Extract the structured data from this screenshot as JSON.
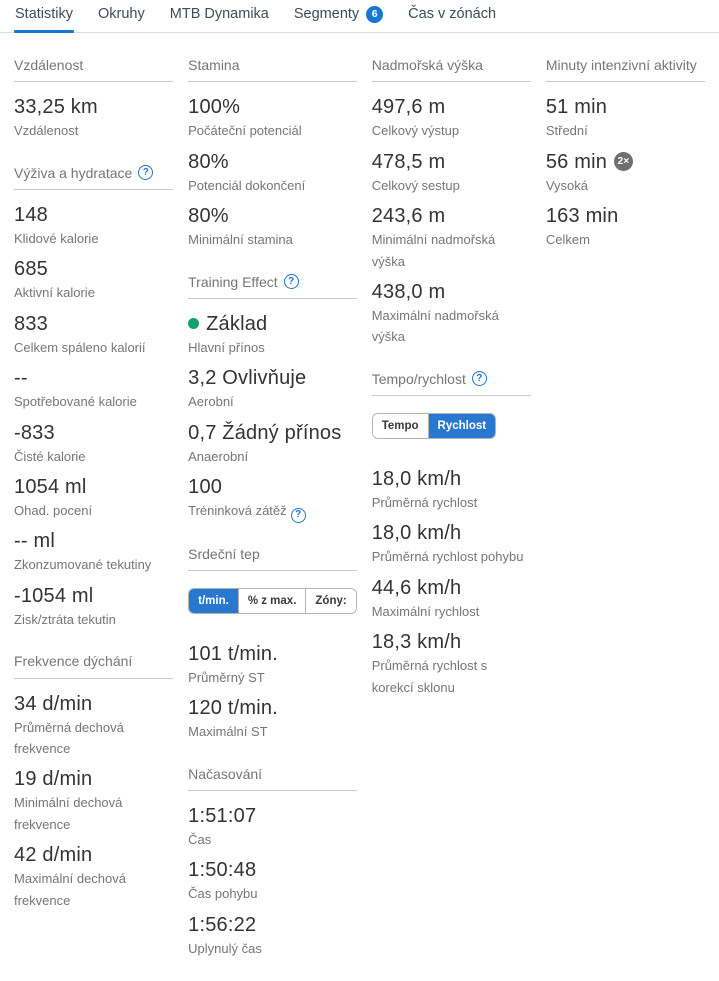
{
  "colors": {
    "accent": "#1976d2",
    "benefit_dot": "#149e72",
    "multiplier_badge": "#6d6f72"
  },
  "icons": {
    "help": "?"
  },
  "tabs": [
    {
      "label": "Statistiky",
      "active": true
    },
    {
      "label": "Okruhy"
    },
    {
      "label": "MTB Dynamika"
    },
    {
      "label": "Segmenty",
      "badge": "6"
    },
    {
      "label": "Čas v zónách"
    }
  ],
  "columns": [
    {
      "sections": [
        {
          "title": "Vzdálenost",
          "metrics": [
            {
              "value": "33,25 km",
              "label": "Vzdálenost"
            }
          ]
        },
        {
          "title": "Výživa a hydratace",
          "help": true,
          "metrics": [
            {
              "value": "148",
              "label": "Klidové kalorie"
            },
            {
              "value": "685",
              "label": "Aktivní kalorie"
            },
            {
              "value": "833",
              "label": "Celkem spáleno kalorií"
            },
            {
              "value": "--",
              "label": "Spotřebované kalorie"
            },
            {
              "value": "-833",
              "label": "Čisté kalorie"
            },
            {
              "value": "1054 ml",
              "label": "Ohad. pocení"
            },
            {
              "value": "-- ml",
              "label": "Zkonzumované tekutiny"
            },
            {
              "value": "-1054 ml",
              "label": "Zisk/ztráta tekutin"
            }
          ]
        },
        {
          "title": "Frekvence dýchání",
          "metrics": [
            {
              "value": "34 d/min",
              "label": "Průměrná dechová frekvence"
            },
            {
              "value": "19 d/min",
              "label": "Minimální dechová frekvence"
            },
            {
              "value": "42 d/min",
              "label": "Maximální dechová frekvence"
            }
          ]
        }
      ]
    },
    {
      "sections": [
        {
          "title": "Stamina",
          "metrics": [
            {
              "value": "100%",
              "label": "Počáteční potenciál"
            },
            {
              "value": "80%",
              "label": "Potenciál dokončení"
            },
            {
              "value": "80%",
              "label": "Minimální stamina"
            }
          ]
        },
        {
          "title": "Training Effect",
          "help": true,
          "metrics": [
            {
              "value": "Základ",
              "label": "Hlavní přínos",
              "dot": true
            },
            {
              "value": "3,2 Ovlivňuje",
              "label": "Aerobní"
            },
            {
              "value": "0,7 Žádný přínos",
              "label": "Anaerobní"
            },
            {
              "value": "100",
              "label": "Tréninková zátěž",
              "label_help": true
            }
          ]
        },
        {
          "title": "Srdeční tep",
          "toggle": [
            {
              "label": "t/min.",
              "active": true
            },
            {
              "label": "% z max."
            },
            {
              "label": "Zóny:"
            }
          ],
          "metrics": [
            {
              "value": "101 t/min.",
              "label": "Průměrný ST"
            },
            {
              "value": "120 t/min.",
              "label": "Maximální ST"
            }
          ]
        },
        {
          "title": "Načasování",
          "metrics": [
            {
              "value": "1:51:07",
              "label": "Čas"
            },
            {
              "value": "1:50:48",
              "label": "Čas pohybu"
            },
            {
              "value": "1:56:22",
              "label": "Uplynulý čas"
            }
          ]
        }
      ]
    },
    {
      "sections": [
        {
          "title": "Nadmořská výška",
          "metrics": [
            {
              "value": "497,6 m",
              "label": "Celkový výstup"
            },
            {
              "value": "478,5 m",
              "label": "Celkový sestup"
            },
            {
              "value": "243,6 m",
              "label": "Minimální nadmořská výška"
            },
            {
              "value": "438,0 m",
              "label": "Maximální nadmořská výška"
            }
          ]
        },
        {
          "title": "Tempo/rychlost",
          "help": true,
          "toggle": [
            {
              "label": "Tempo"
            },
            {
              "label": "Rychlost",
              "active": true
            }
          ],
          "metrics": [
            {
              "value": "18,0 km/h",
              "label": "Průměrná rychlost"
            },
            {
              "value": "18,0 km/h",
              "label": "Průměrná rychlost pohybu"
            },
            {
              "value": "44,6 km/h",
              "label": "Maximální rychlost"
            },
            {
              "value": "18,3 km/h",
              "label": "Průměrná rychlost s korekcí sklonu"
            }
          ]
        }
      ]
    },
    {
      "sections": [
        {
          "title": "Minuty intenzivní aktivity",
          "metrics": [
            {
              "value": "51 min",
              "label": "Střední"
            },
            {
              "value": "56 min",
              "label": "Vysoká",
              "badge": "2×"
            },
            {
              "value": "163 min",
              "label": "Celkem"
            }
          ]
        }
      ]
    }
  ]
}
